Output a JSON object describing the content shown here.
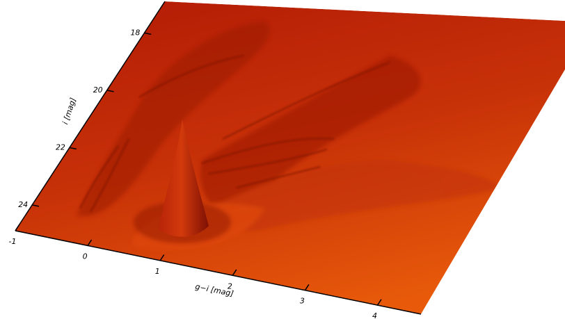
{
  "chart_data": {
    "type": "surface",
    "xlabel": "g−i [mag]",
    "ylabel": "i [mag]",
    "xlim": [
      -1,
      4.6
    ],
    "xticks": [
      -1,
      0,
      1,
      2,
      3,
      4
    ],
    "ylim": [
      24.9,
      16.9
    ],
    "yticks": [
      18,
      20,
      22,
      24
    ]
  }
}
